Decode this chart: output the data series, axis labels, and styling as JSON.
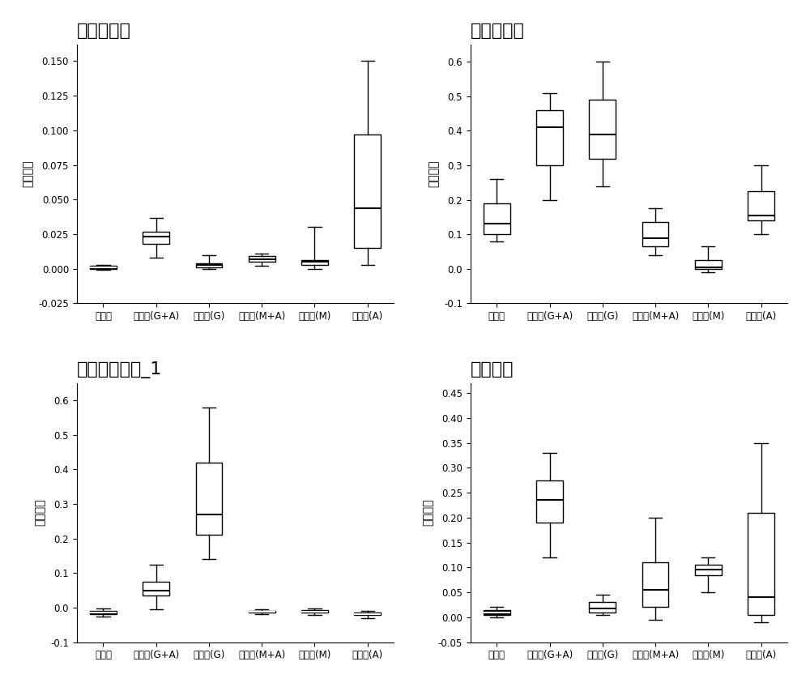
{
  "plots": [
    {
      "title": "艾克曼菌属",
      "ylabel": "序列比例",
      "categories": [
        "空白组",
        "合生元(G+A)",
        "合生元(G)",
        "合生元(M+A)",
        "合生元(M)",
        "合生元(A)"
      ],
      "boxes": [
        {
          "whislo": -0.001,
          "q1": 0.0,
          "med": 0.001,
          "q3": 0.002,
          "whishi": 0.003,
          "fliers": [],
          "filled": true
        },
        {
          "whislo": 0.008,
          "q1": 0.018,
          "med": 0.023,
          "q3": 0.027,
          "whishi": 0.037,
          "fliers": [],
          "filled": false
        },
        {
          "whislo": 0.0,
          "q1": 0.001,
          "med": 0.003,
          "q3": 0.004,
          "whishi": 0.01,
          "fliers": [],
          "filled": false
        },
        {
          "whislo": 0.002,
          "q1": 0.005,
          "med": 0.007,
          "q3": 0.009,
          "whishi": 0.011,
          "fliers": [],
          "filled": false
        },
        {
          "whislo": 0.0,
          "q1": 0.003,
          "med": 0.005,
          "q3": 0.006,
          "whishi": 0.03,
          "fliers": [],
          "filled": false
        },
        {
          "whislo": 0.003,
          "q1": 0.015,
          "med": 0.044,
          "q3": 0.097,
          "whishi": 0.15,
          "fliers": [],
          "filled": false
        }
      ],
      "ylim": [
        -0.025,
        0.162
      ],
      "yticks": [
        -0.025,
        0.0,
        0.025,
        0.05,
        0.075,
        0.1,
        0.125,
        0.15
      ]
    },
    {
      "title": "双歧杆菌科",
      "ylabel": "序列比例",
      "categories": [
        "空白组",
        "合生元(G+A)",
        "合生元(G)",
        "合生元(M+A)",
        "合生元(M)",
        "合生元(A)"
      ],
      "boxes": [
        {
          "whislo": 0.08,
          "q1": 0.1,
          "med": 0.13,
          "q3": 0.19,
          "whishi": 0.26,
          "fliers": [],
          "filled": false
        },
        {
          "whislo": 0.2,
          "q1": 0.3,
          "med": 0.41,
          "q3": 0.46,
          "whishi": 0.51,
          "fliers": [],
          "filled": false
        },
        {
          "whislo": 0.24,
          "q1": 0.32,
          "med": 0.39,
          "q3": 0.49,
          "whishi": 0.6,
          "fliers": [],
          "filled": false
        },
        {
          "whislo": 0.04,
          "q1": 0.065,
          "med": 0.09,
          "q3": 0.135,
          "whishi": 0.175,
          "fliers": [],
          "filled": false
        },
        {
          "whislo": -0.01,
          "q1": 0.0,
          "med": 0.005,
          "q3": 0.025,
          "whishi": 0.065,
          "fliers": [],
          "filled": false
        },
        {
          "whislo": 0.1,
          "q1": 0.14,
          "med": 0.155,
          "q3": 0.225,
          "whishi": 0.3,
          "fliers": [],
          "filled": false
        }
      ],
      "ylim": [
        -0.1,
        0.65
      ],
      "yticks": [
        -0.1,
        0.0,
        0.1,
        0.2,
        0.3,
        0.4,
        0.5,
        0.6
      ]
    },
    {
      "title": "产丁酸梭菌科_1",
      "ylabel": "序列比例",
      "categories": [
        "空白组",
        "合生元(G+A)",
        "合生元(G)",
        "合生元(M+A)",
        "合生元(M)",
        "合生元(A)"
      ],
      "boxes": [
        {
          "whislo": -0.025,
          "q1": -0.018,
          "med": -0.015,
          "q3": -0.01,
          "whishi": -0.003,
          "fliers": [],
          "filled": true
        },
        {
          "whislo": -0.005,
          "q1": 0.035,
          "med": 0.048,
          "q3": 0.075,
          "whishi": 0.125,
          "fliers": [],
          "filled": false
        },
        {
          "whislo": 0.14,
          "q1": 0.21,
          "med": 0.27,
          "q3": 0.42,
          "whishi": 0.58,
          "fliers": [],
          "filled": false
        },
        {
          "whislo": -0.02,
          "q1": -0.015,
          "med": -0.013,
          "q3": -0.01,
          "whishi": -0.005,
          "fliers": [],
          "filled": true
        },
        {
          "whislo": -0.022,
          "q1": -0.015,
          "med": -0.012,
          "q3": -0.008,
          "whishi": -0.002,
          "fliers": [],
          "filled": true
        },
        {
          "whislo": -0.03,
          "q1": -0.022,
          "med": -0.018,
          "q3": -0.015,
          "whishi": -0.01,
          "fliers": [],
          "filled": true
        }
      ],
      "ylim": [
        -0.1,
        0.65
      ],
      "yticks": [
        -0.1,
        0.0,
        0.1,
        0.2,
        0.3,
        0.4,
        0.5,
        0.6
      ]
    },
    {
      "title": "乳杆菌科",
      "ylabel": "序列比例",
      "categories": [
        "空白组",
        "合生元(G+A)",
        "合生元(G)",
        "合生元(M+A)",
        "合生元(M)",
        "合生元(A)"
      ],
      "boxes": [
        {
          "whislo": 0.0,
          "q1": 0.005,
          "med": 0.01,
          "q3": 0.015,
          "whishi": 0.02,
          "fliers": [],
          "filled": true
        },
        {
          "whislo": 0.12,
          "q1": 0.19,
          "med": 0.235,
          "q3": 0.275,
          "whishi": 0.33,
          "fliers": [],
          "filled": false
        },
        {
          "whislo": 0.005,
          "q1": 0.01,
          "med": 0.018,
          "q3": 0.03,
          "whishi": 0.045,
          "fliers": [],
          "filled": false
        },
        {
          "whislo": -0.005,
          "q1": 0.02,
          "med": 0.055,
          "q3": 0.11,
          "whishi": 0.2,
          "fliers": [],
          "filled": false
        },
        {
          "whislo": 0.05,
          "q1": 0.085,
          "med": 0.095,
          "q3": 0.105,
          "whishi": 0.12,
          "fliers": [],
          "filled": false
        },
        {
          "whislo": -0.01,
          "q1": 0.005,
          "med": 0.04,
          "q3": 0.21,
          "whishi": 0.35,
          "fliers": [],
          "filled": false
        }
      ],
      "ylim": [
        -0.05,
        0.47
      ],
      "yticks": [
        -0.05,
        0.0,
        0.05,
        0.1,
        0.15,
        0.2,
        0.25,
        0.3,
        0.35,
        0.4,
        0.45
      ]
    }
  ],
  "box_color": "#ffffff",
  "filled_box_color": "#000000",
  "median_color": "#000000",
  "whisker_color": "#000000",
  "cap_color": "#000000",
  "box_edge_color": "#000000",
  "background_color": "#ffffff",
  "title_fontsize": 16,
  "label_fontsize": 10,
  "tick_fontsize": 8.5
}
